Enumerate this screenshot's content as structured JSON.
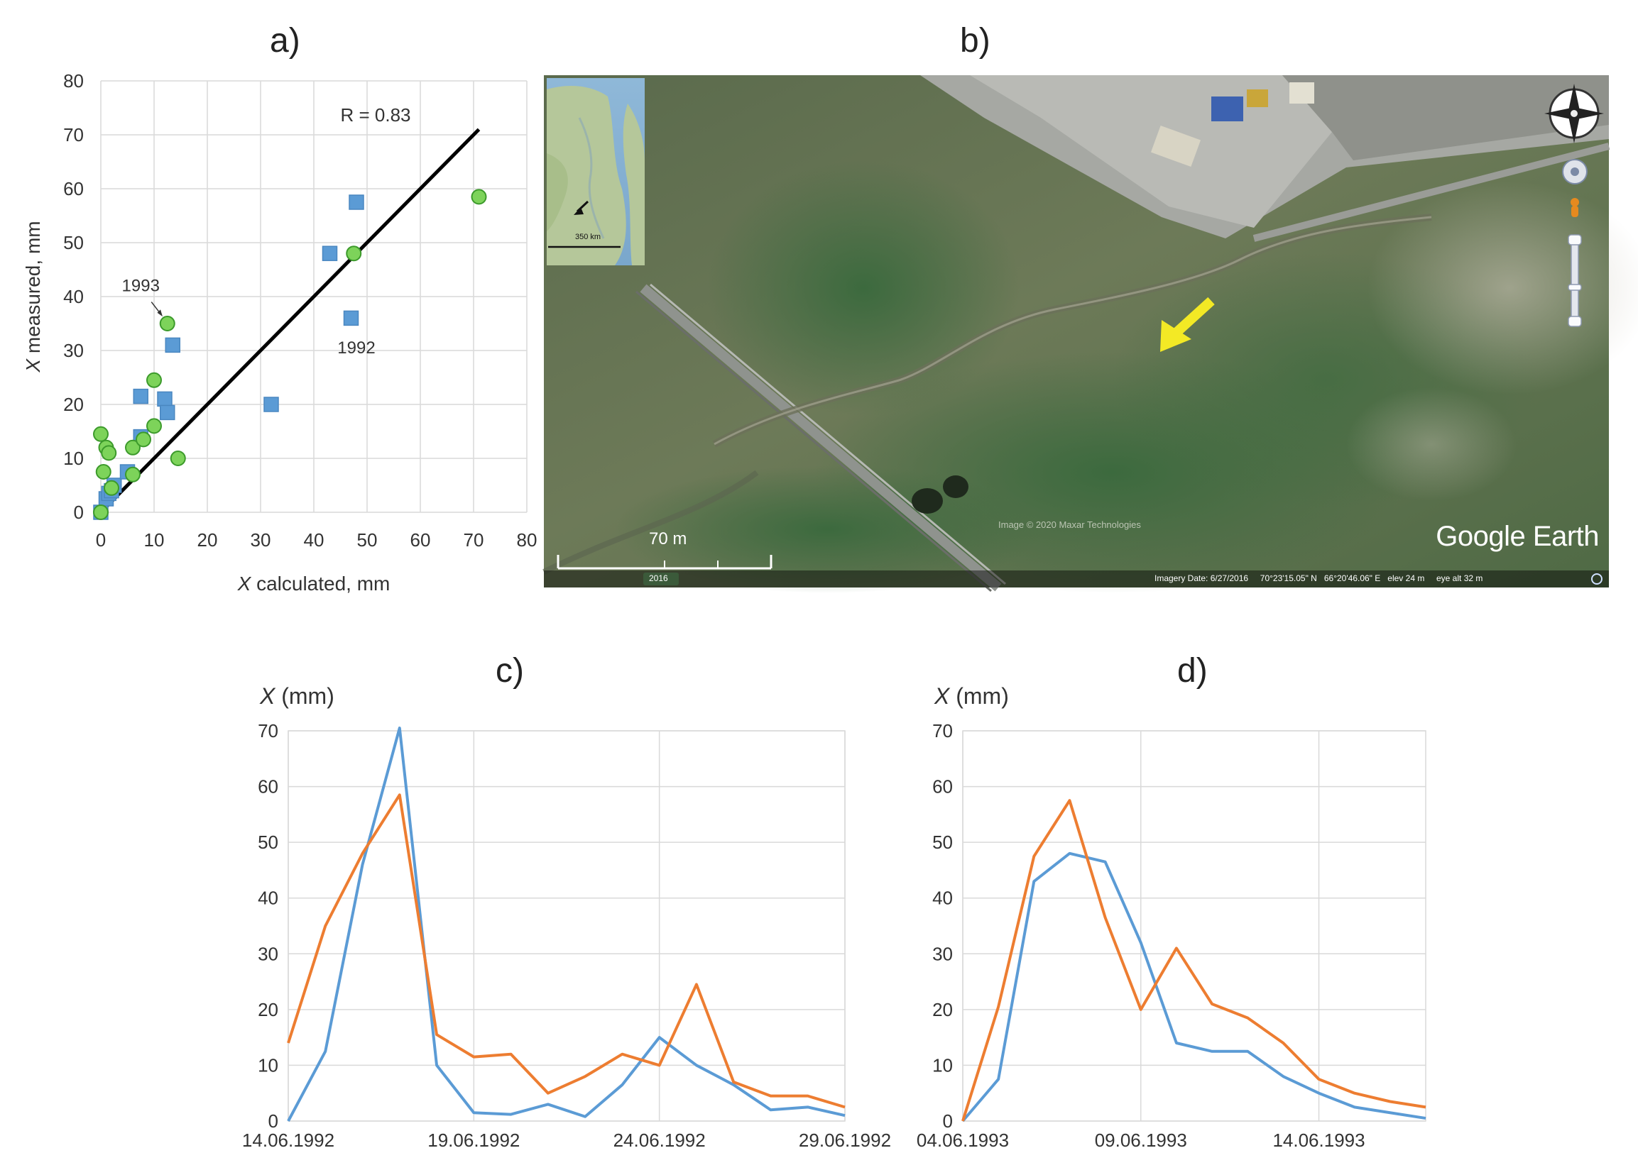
{
  "panels": {
    "a": {
      "label": "a)"
    },
    "b": {
      "label": "b)"
    },
    "c": {
      "label": "c)"
    },
    "d": {
      "label": "d)"
    }
  },
  "map": {
    "inset_scale": "350 km",
    "scale_label": "70 m",
    "attribution": "Image © 2020 Maxar Technologies",
    "year_badge": "2016",
    "brand": "Google Earth",
    "status": {
      "imagery_date": "Imagery Date: 6/27/2016",
      "lat": "70°23'15.05\" N",
      "lon": "66°20'46.06\" E",
      "elev": "elev   24 m",
      "eye_alt": "eye alt   32 m"
    }
  },
  "chart_data": [
    {
      "id": "a",
      "type": "scatter",
      "xlabel_var": "X",
      "xlabel": " calculated, mm",
      "ylabel_var": "X",
      "ylabel": " measured, mm",
      "xlim": [
        0,
        80
      ],
      "ylim": [
        0,
        80
      ],
      "xticks": [
        0,
        10,
        20,
        30,
        40,
        50,
        60,
        70,
        80
      ],
      "yticks": [
        0,
        10,
        20,
        30,
        40,
        50,
        60,
        70,
        80
      ],
      "grid": true,
      "annotation_r": "R = 0.83",
      "annotations": [
        {
          "text": "1993",
          "x": 7.5,
          "y": 41
        },
        {
          "text": "1992",
          "x": 48,
          "y": 29.5
        }
      ],
      "fit_line": {
        "x": [
          0,
          71
        ],
        "y": [
          0,
          71
        ]
      },
      "series": [
        {
          "marker": "square",
          "color": "#5b9bd5",
          "points": [
            [
              0,
              0
            ],
            [
              1,
              2.5
            ],
            [
              1.5,
              3.5
            ],
            [
              2,
              4
            ],
            [
              2.5,
              5
            ],
            [
              5,
              7.5
            ],
            [
              7.5,
              14
            ],
            [
              7.5,
              21.5
            ],
            [
              12,
              21
            ],
            [
              12.5,
              18.5
            ],
            [
              13.5,
              31
            ],
            [
              32,
              20
            ],
            [
              43,
              48
            ],
            [
              47,
              36
            ],
            [
              48,
              57.5
            ]
          ]
        },
        {
          "marker": "circle",
          "color": "#7dd35a",
          "points": [
            [
              0,
              0
            ],
            [
              0,
              14.5
            ],
            [
              0.5,
              7.5
            ],
            [
              1,
              12
            ],
            [
              1.5,
              11
            ],
            [
              2,
              4.5
            ],
            [
              6,
              7
            ],
            [
              6,
              12
            ],
            [
              8,
              13.5
            ],
            [
              10,
              16
            ],
            [
              10,
              24.5
            ],
            [
              12.5,
              35
            ],
            [
              14.5,
              10
            ],
            [
              47.5,
              48
            ],
            [
              71,
              58.5
            ]
          ]
        }
      ]
    },
    {
      "id": "c",
      "type": "line",
      "title": "c)",
      "ylabel_var": "X",
      "ylabel": " (mm)",
      "xticks": [
        "14.06.1992",
        "19.06.1992",
        "24.06.1992",
        "29.06.1992"
      ],
      "ylim": [
        0,
        70
      ],
      "yticks": [
        0,
        10,
        20,
        30,
        40,
        50,
        60,
        70
      ],
      "grid": true,
      "x": [
        "14.06.1992",
        "15.06.1992",
        "16.06.1992",
        "17.06.1992",
        "18.06.1992",
        "19.06.1992",
        "20.06.1992",
        "21.06.1992",
        "22.06.1992",
        "23.06.1992",
        "24.06.1992",
        "25.06.1992",
        "26.06.1992",
        "27.06.1992",
        "28.06.1992",
        "29.06.1992"
      ],
      "series": [
        {
          "color": "#5b9bd5",
          "values": [
            0,
            12.5,
            46,
            70.5,
            10,
            1.5,
            1.2,
            3,
            0.8,
            6.5,
            15,
            10,
            6.5,
            2,
            2.5,
            1
          ]
        },
        {
          "color": "#ed7d31",
          "values": [
            14,
            35,
            48,
            58.5,
            15.5,
            11.5,
            12,
            5,
            8,
            12,
            10,
            24.5,
            7,
            4.5,
            4.5,
            2.5
          ]
        }
      ]
    },
    {
      "id": "d",
      "type": "line",
      "title": "d)",
      "ylabel_var": "X",
      "ylabel": " (mm)",
      "xticks": [
        "04.06.1993",
        "09.06.1993",
        "14.06.1993"
      ],
      "ylim": [
        0,
        70
      ],
      "yticks": [
        0,
        10,
        20,
        30,
        40,
        50,
        60,
        70
      ],
      "grid": true,
      "x": [
        "04.06.1993",
        "05.06.1993",
        "06.06.1993",
        "07.06.1993",
        "08.06.1993",
        "09.06.1993",
        "10.06.1993",
        "11.06.1993",
        "12.06.1993",
        "13.06.1993",
        "14.06.1993",
        "15.06.1993",
        "16.06.1993",
        "17.06.1993"
      ],
      "series": [
        {
          "color": "#5b9bd5",
          "values": [
            0,
            7.5,
            43,
            48,
            46.5,
            32,
            14,
            12.5,
            12.5,
            8,
            5,
            2.5,
            1.5,
            0.5
          ]
        },
        {
          "color": "#ed7d31",
          "values": [
            0,
            20.5,
            47.5,
            57.5,
            36.5,
            20,
            31,
            21,
            18.5,
            14,
            7.5,
            5,
            3.5,
            2.5
          ]
        }
      ]
    }
  ]
}
